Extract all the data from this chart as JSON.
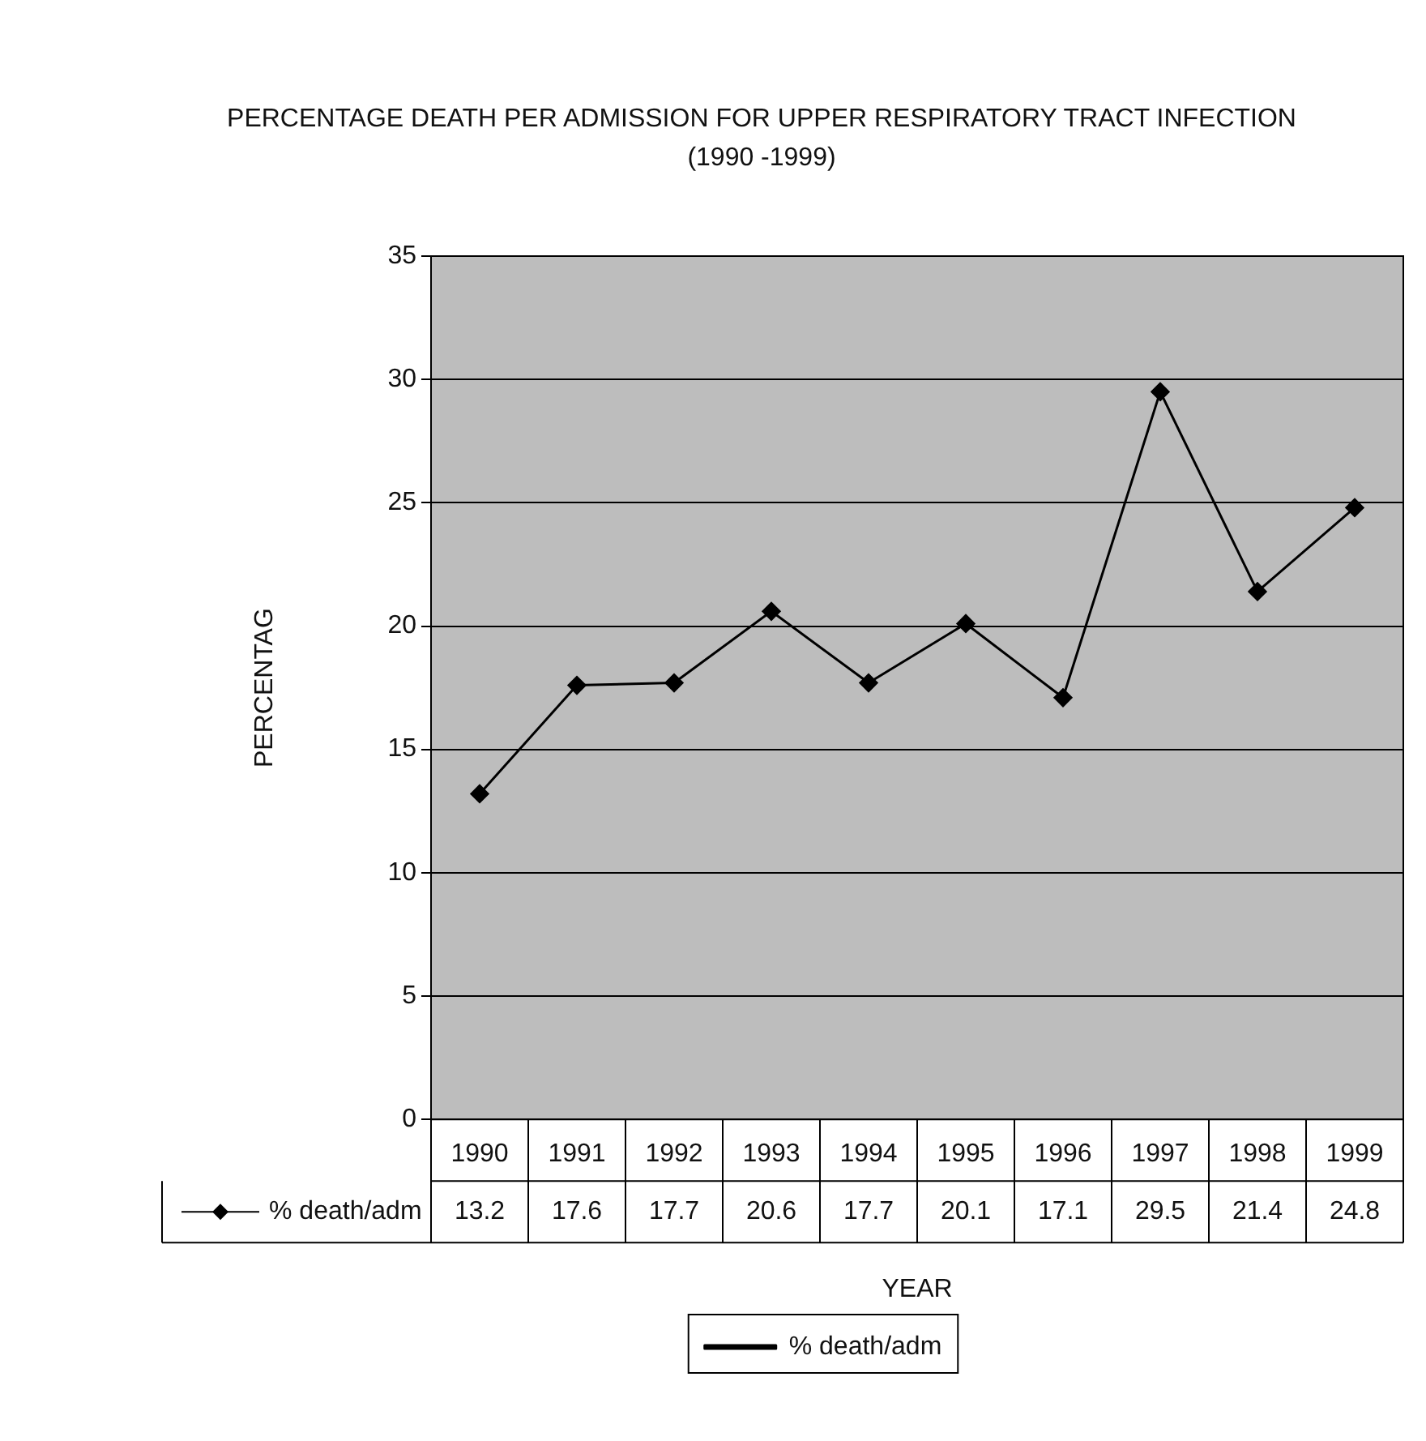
{
  "chart_data": {
    "type": "line",
    "title": "PERCENTAGE DEATH PER ADMISSION FOR UPPER RESPIRATORY TRACT INFECTION (1990 -1999)",
    "xlabel": "YEAR",
    "ylabel": "PERCENTAG",
    "categories": [
      "1990",
      "1991",
      "1992",
      "1993",
      "1994",
      "1995",
      "1996",
      "1997",
      "1998",
      "1999"
    ],
    "series": [
      {
        "name": "% death/adm",
        "color": "#000000",
        "values": [
          13.2,
          17.6,
          17.7,
          20.6,
          17.7,
          20.1,
          17.1,
          29.5,
          21.4,
          24.8
        ]
      }
    ],
    "ylim": [
      0,
      35
    ],
    "yticks": [
      0,
      5,
      10,
      15,
      20,
      25,
      30,
      35
    ],
    "grid": "y",
    "legend": "bottom",
    "marker": "diamond",
    "line_style": "solid",
    "data_labels": true
  }
}
